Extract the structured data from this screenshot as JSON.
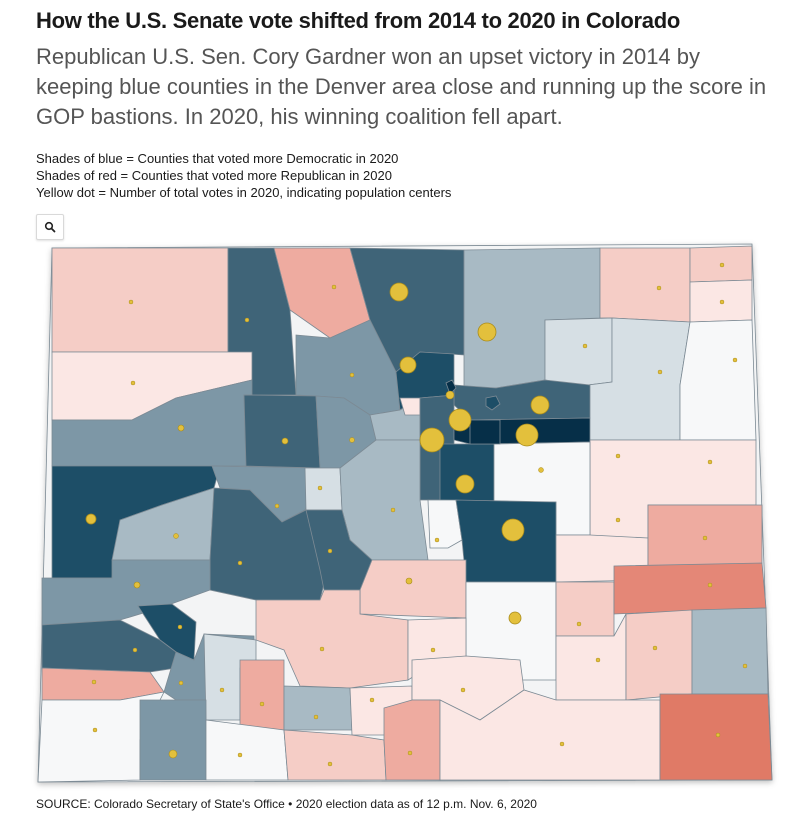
{
  "header": {
    "title": "How the U.S. Senate vote shifted from 2014 to 2020 in Colorado",
    "subtitle": "Republican U.S. Sen. Cory Gardner won an upset victory in 2014 by keeping blue counties in the Denver area close and running up the score in GOP bastions. In 2020, his winning coalition fell apart."
  },
  "legend": {
    "blue": "Shades of blue = Counties that voted more Democratic in 2020",
    "red": "Shades of red = Counties that voted more Republican in 2020",
    "dot": "Yellow dot = Number of total votes in 2020, indicating population centers"
  },
  "controls": {
    "zoom_icon": "search-icon"
  },
  "map": {
    "region": "Colorado counties",
    "colors": {
      "dem_darkest": "#062f48",
      "dem_dark": "#1d4e67",
      "dem_mid": "#3f6478",
      "dem_light": "#7d97a6",
      "dem_lighter": "#a8bac4",
      "dem_faint": "#d6dfe4",
      "neutral": "#f7f8f9",
      "rep_faint": "#fbe7e4",
      "rep_light": "#f5cdc6",
      "rep_mid": "#eeaba0",
      "rep_strong": "#e48777",
      "rep_darkest": "#e07a66",
      "dot": "#e3c03c"
    }
  },
  "footer": {
    "source": "SOURCE: Colorado Secretary of State's Office • 2020 election data as of 12 p.m. Nov. 6, 2020"
  }
}
